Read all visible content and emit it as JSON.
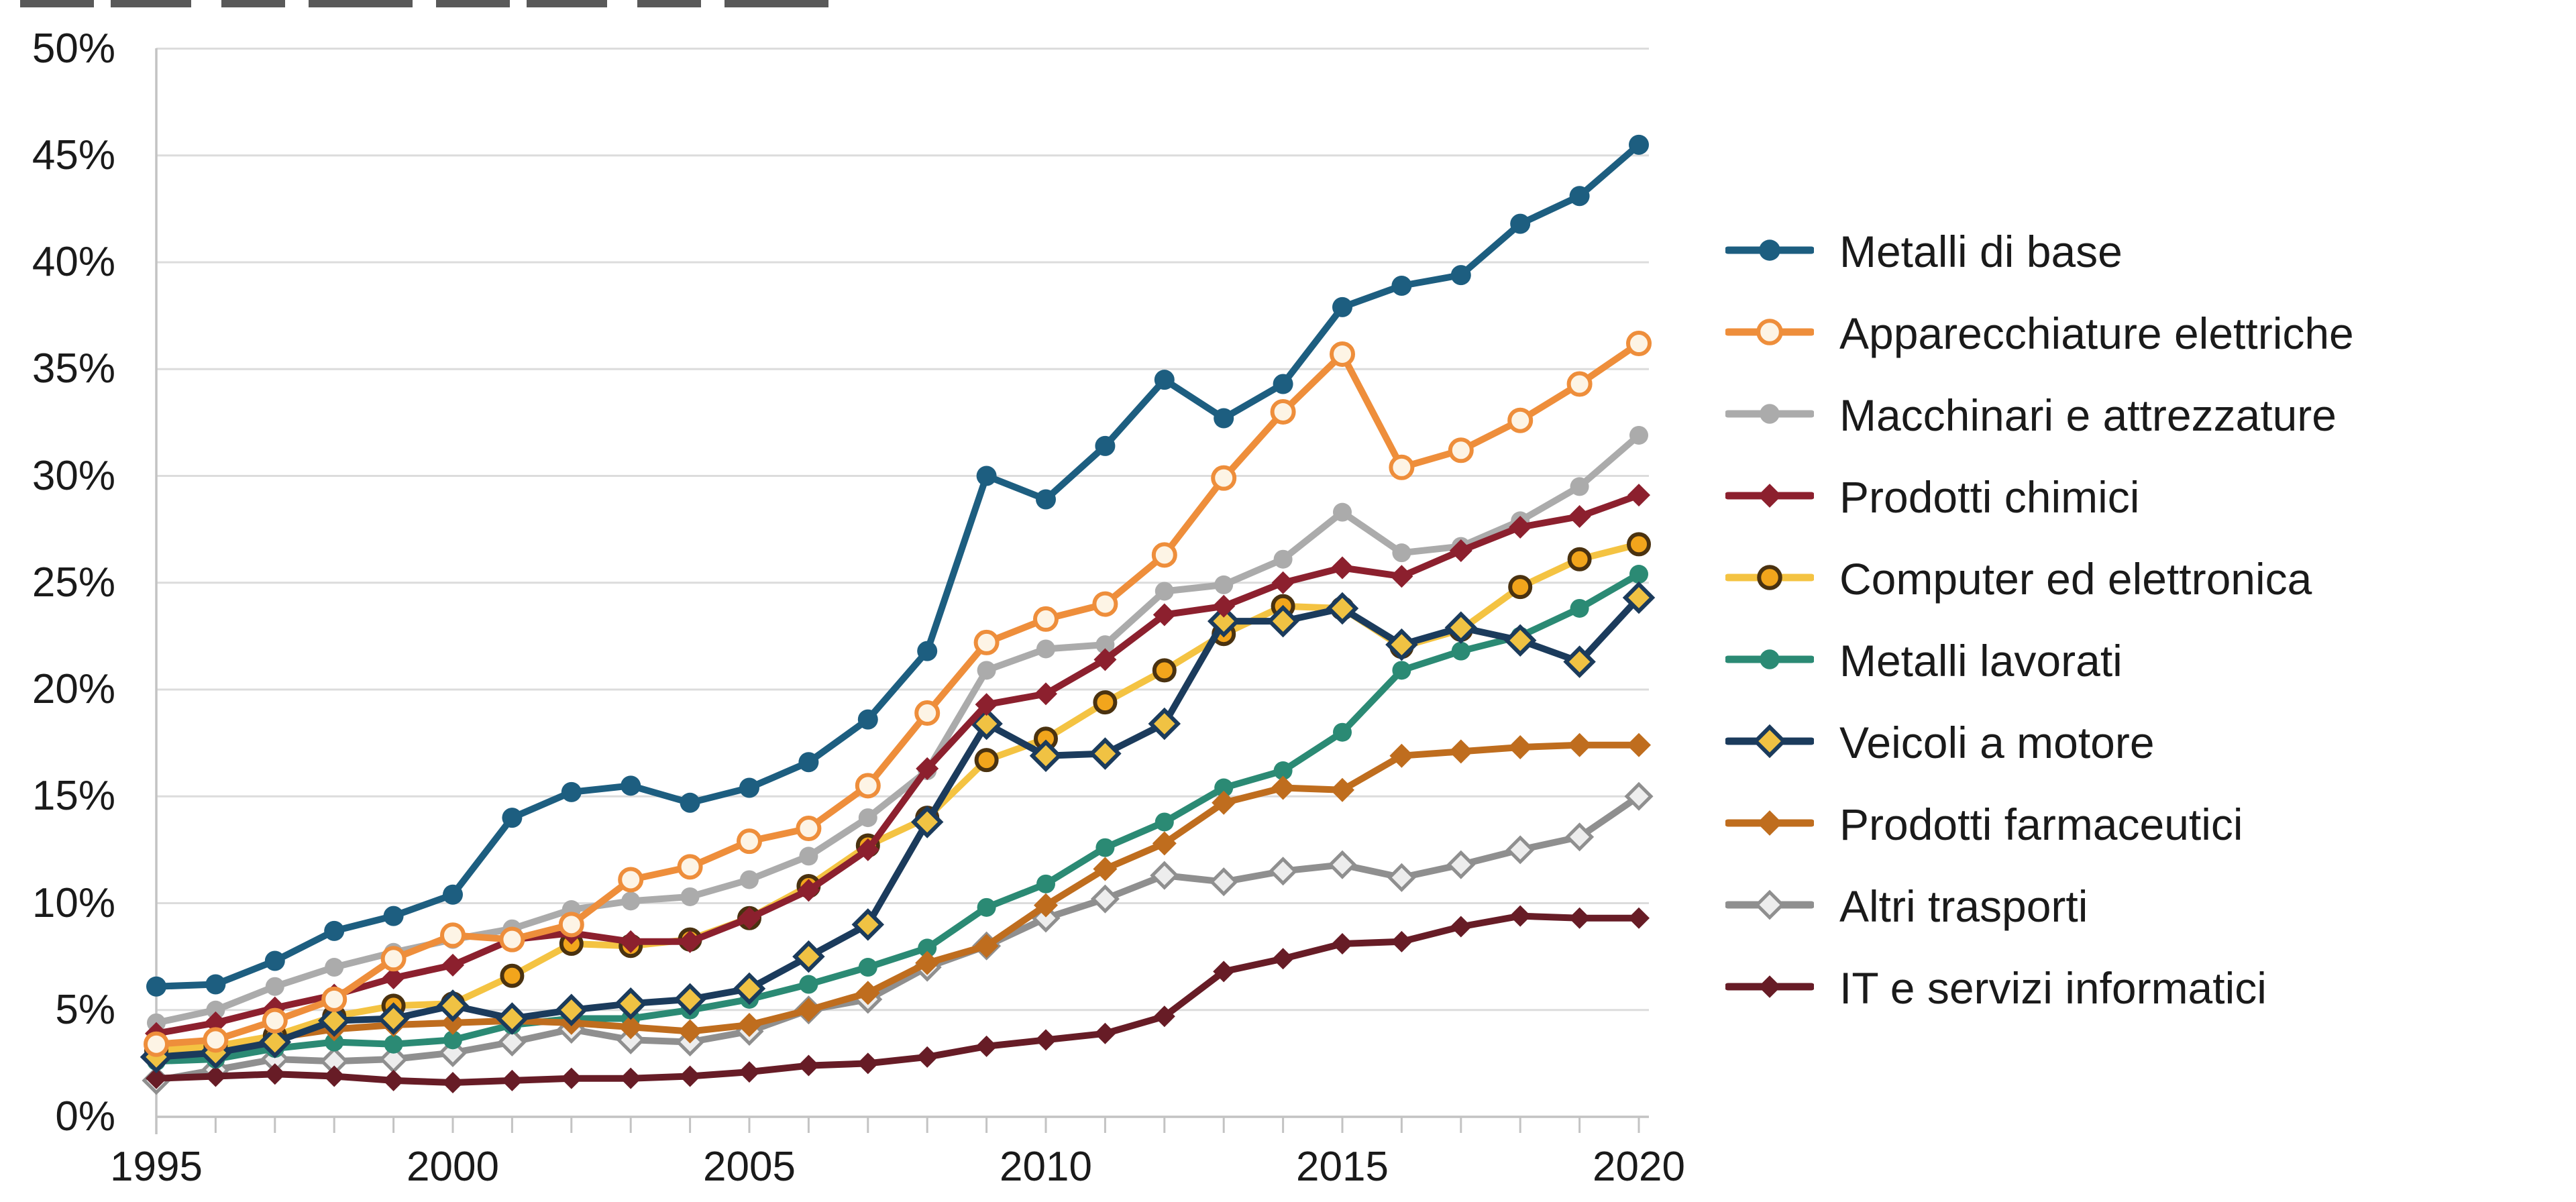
{
  "figure": {
    "background": "#ffffff",
    "note": "title cut off at top edge of screenshot",
    "axis_text_color": "#1a1a1a",
    "gridline_color": "#dcdcdc",
    "axis_line_color": "#c3c3c3"
  },
  "chart_data": {
    "type": "line",
    "title": "",
    "xlabel": "",
    "ylabel": "",
    "grid": "horizontal",
    "legend_position": "right",
    "x": [
      1995,
      1996,
      1997,
      1998,
      1999,
      2000,
      2001,
      2002,
      2003,
      2004,
      2005,
      2006,
      2007,
      2008,
      2009,
      2010,
      2011,
      2012,
      2013,
      2014,
      2015,
      2016,
      2017,
      2018,
      2019,
      2020
    ],
    "x_axis": {
      "tick_years": [
        1995,
        2000,
        2005,
        2010,
        2015,
        2020
      ],
      "tick_labels": [
        "1995",
        "2000",
        "2005",
        "2010",
        "2015",
        "2020"
      ]
    },
    "y_axis": {
      "min": 0,
      "max": 50,
      "step": 5,
      "format": "percent",
      "tick_labels": [
        "0%",
        "5%",
        "10%",
        "15%",
        "20%",
        "25%",
        "30%",
        "35%",
        "40%",
        "45%",
        "50%"
      ]
    },
    "series": [
      {
        "name": "Metalli di base",
        "slug": "metalli-di-base",
        "color": "#1d5e80",
        "marker": {
          "shape": "circle",
          "fill": "#1d5e80",
          "stroke": "none",
          "sw": 0,
          "r": 15
        },
        "values": [
          6.1,
          6.2,
          7.3,
          8.7,
          9.4,
          10.4,
          14.0,
          15.2,
          15.5,
          14.7,
          15.4,
          16.6,
          18.6,
          21.8,
          30.0,
          28.9,
          31.4,
          34.5,
          32.7,
          34.3,
          37.9,
          38.9,
          39.4,
          41.8,
          43.1,
          45.5
        ]
      },
      {
        "name": "Apparecchiature elettriche",
        "slug": "apparecchiature-elettriche",
        "color": "#ee8e3b",
        "marker": {
          "shape": "circle",
          "fill": "#fdf4e5",
          "stroke": "#ee8e3b",
          "sw": 6,
          "r": 16
        },
        "values": [
          3.4,
          3.6,
          4.5,
          5.5,
          7.4,
          8.5,
          8.3,
          9.0,
          11.1,
          11.7,
          12.9,
          13.5,
          15.5,
          18.9,
          22.2,
          23.3,
          24.0,
          26.3,
          29.9,
          33.0,
          35.7,
          30.4,
          31.2,
          32.6,
          34.3,
          36.2
        ]
      },
      {
        "name": "Macchinari e attrezzature",
        "slug": "macchinari-e-attrezzature",
        "color": "#ababab",
        "marker": {
          "shape": "circle",
          "fill": "#ababab",
          "stroke": "none",
          "sw": 0,
          "r": 14
        },
        "values": [
          4.4,
          5.0,
          6.1,
          7.0,
          7.7,
          8.3,
          8.8,
          9.7,
          10.1,
          10.3,
          11.1,
          12.2,
          14.0,
          16.2,
          20.9,
          21.9,
          22.1,
          24.6,
          24.9,
          26.1,
          28.3,
          26.4,
          26.7,
          27.9,
          29.5,
          31.9
        ]
      },
      {
        "name": "Prodotti chimici",
        "slug": "prodotti-chimici",
        "color": "#8c202e",
        "marker": {
          "shape": "diamond",
          "fill": "#8c202e",
          "stroke": "none",
          "sw": 0,
          "r": 17
        },
        "values": [
          3.9,
          4.4,
          5.1,
          5.7,
          6.5,
          7.1,
          8.3,
          8.6,
          8.2,
          8.2,
          9.3,
          10.6,
          12.5,
          16.3,
          19.3,
          19.8,
          21.4,
          23.5,
          23.9,
          25.0,
          25.7,
          25.3,
          26.5,
          27.6,
          28.1,
          29.1
        ]
      },
      {
        "name": "Computer ed elettronica",
        "slug": "computer-ed-elettronica",
        "color": "#f4c342",
        "marker": {
          "shape": "circle",
          "fill": "#f2a51c",
          "stroke": "#4a3210",
          "sw": 6,
          "r": 15
        },
        "values": [
          3.1,
          3.3,
          3.8,
          4.7,
          5.2,
          5.3,
          6.6,
          8.1,
          8.0,
          8.3,
          9.3,
          10.8,
          12.7,
          14.0,
          16.7,
          17.7,
          19.4,
          20.9,
          22.6,
          23.9,
          23.8,
          22.0,
          22.8,
          24.8,
          26.1,
          26.8
        ]
      },
      {
        "name": "Metalli lavorati",
        "slug": "metalli-lavorati",
        "color": "#2b8a74",
        "marker": {
          "shape": "circle",
          "fill": "#2b8a74",
          "stroke": "none",
          "sw": 0,
          "r": 14
        },
        "values": [
          2.6,
          2.7,
          3.2,
          3.5,
          3.4,
          3.6,
          4.3,
          4.6,
          4.6,
          5.0,
          5.5,
          6.2,
          7.0,
          7.9,
          9.8,
          10.9,
          12.6,
          13.8,
          15.4,
          16.2,
          18.0,
          20.9,
          21.8,
          22.5,
          23.8,
          25.4
        ]
      },
      {
        "name": "Veicoli a motore",
        "slug": "veicoli-a-motore",
        "color": "#1b3b5c",
        "marker": {
          "shape": "diamond",
          "fill": "#f0c243",
          "stroke": "#1b3b5c",
          "sw": 6,
          "r": 20
        },
        "values": [
          2.8,
          3.0,
          3.5,
          4.5,
          4.6,
          5.2,
          4.6,
          5.0,
          5.3,
          5.5,
          6.0,
          7.5,
          9.0,
          13.8,
          18.4,
          16.9,
          17.0,
          18.4,
          23.2,
          23.2,
          23.8,
          22.1,
          22.9,
          22.3,
          21.3,
          24.3
        ]
      },
      {
        "name": "Prodotti farmaceutici",
        "slug": "prodotti-farmaceutici",
        "color": "#bf6d1e",
        "marker": {
          "shape": "diamond",
          "fill": "#bf6d1e",
          "stroke": "none",
          "sw": 0,
          "r": 18
        },
        "values": [
          3.0,
          3.3,
          3.7,
          4.1,
          4.3,
          4.4,
          4.5,
          4.4,
          4.2,
          4.0,
          4.3,
          5.0,
          5.8,
          7.2,
          8.0,
          9.9,
          11.6,
          12.8,
          14.7,
          15.4,
          15.3,
          16.9,
          17.1,
          17.3,
          17.4,
          17.4
        ]
      },
      {
        "name": "Altri trasporti",
        "slug": "altri-trasporti",
        "color": "#8f8f8f",
        "marker": {
          "shape": "diamond",
          "fill": "#ededed",
          "stroke": "#8f8f8f",
          "sw": 5,
          "r": 18
        },
        "values": [
          1.7,
          2.2,
          2.7,
          2.6,
          2.7,
          3.0,
          3.5,
          4.1,
          3.6,
          3.5,
          4.0,
          5.0,
          5.5,
          7.0,
          8.0,
          9.3,
          10.2,
          11.3,
          11.0,
          11.5,
          11.8,
          11.2,
          11.8,
          12.5,
          13.1,
          15.0
        ]
      },
      {
        "name": "IT e servizi informatici",
        "slug": "it-e-servizi-informatici",
        "color": "#671c26",
        "marker": {
          "shape": "diamond",
          "fill": "#671c26",
          "stroke": "none",
          "sw": 0,
          "r": 16
        },
        "values": [
          1.8,
          1.9,
          2.0,
          1.9,
          1.7,
          1.6,
          1.7,
          1.8,
          1.8,
          1.9,
          2.1,
          2.4,
          2.5,
          2.8,
          3.3,
          3.6,
          3.9,
          4.7,
          6.8,
          7.4,
          8.1,
          8.2,
          8.9,
          9.4,
          9.3,
          9.3
        ]
      }
    ]
  }
}
